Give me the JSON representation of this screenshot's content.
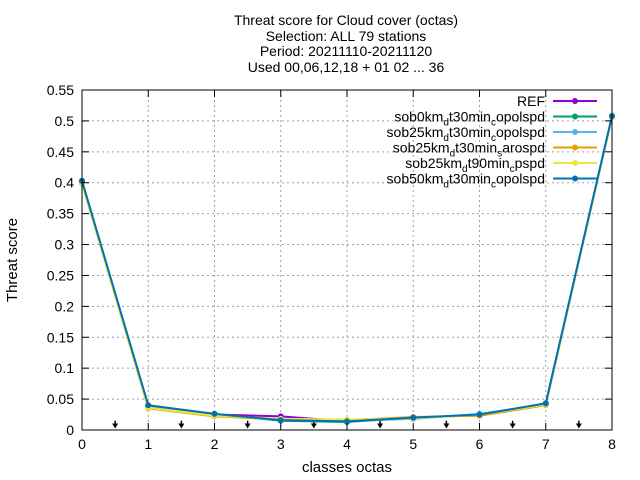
{
  "title_lines": [
    "Threat score  for Cloud cover (octas)",
    "Selection: ALL      79 stations",
    "Period: 20211110-20211120",
    "Used 00,06,12,18 + 01 02 ... 36"
  ],
  "chart_data": {
    "type": "line",
    "title": "Threat score  for Cloud cover (octas)",
    "xlabel": "classes octas",
    "ylabel": "Threat score",
    "xlim": [
      0,
      8
    ],
    "ylim": [
      0,
      0.55
    ],
    "x_ticks": [
      0,
      1,
      2,
      3,
      4,
      5,
      6,
      7,
      8
    ],
    "x_tick_labels": [
      "0",
      "1",
      "2",
      "3",
      "4",
      "5",
      "6",
      "7",
      "8"
    ],
    "y_ticks": [
      0,
      0.05,
      0.1,
      0.15,
      0.2,
      0.25,
      0.3,
      0.35,
      0.4,
      0.45,
      0.5,
      0.55
    ],
    "y_tick_labels": [
      "0",
      "0.05",
      "0.1",
      "0.15",
      "0.2",
      "0.25",
      "0.3",
      "0.35",
      "0.4",
      "0.45",
      "0.5",
      "0.55"
    ],
    "grid": true,
    "legend_position": "top-right",
    "x": [
      0,
      1,
      2,
      3,
      4,
      5,
      6,
      7,
      8
    ],
    "series": [
      {
        "name": "REF",
        "legend_parts": [
          [
            "REF",
            "n"
          ]
        ],
        "color": "#9400d3",
        "values": [
          0.403,
          0.037,
          0.025,
          0.022,
          0.014,
          0.019,
          0.025,
          0.041,
          0.507
        ]
      },
      {
        "name": "sob0km_dt30min_copolspd",
        "legend_parts": [
          [
            "sob0km",
            "n"
          ],
          [
            "d",
            "sub"
          ],
          [
            "t30min",
            "n"
          ],
          [
            "c",
            "sub"
          ],
          [
            "opolspd",
            "n"
          ]
        ],
        "color": "#009e73",
        "values": [
          0.401,
          0.039,
          0.026,
          0.015,
          0.013,
          0.02,
          0.024,
          0.043,
          0.508
        ]
      },
      {
        "name": "sob25km_dt30min_copolspd",
        "legend_parts": [
          [
            "sob25km",
            "n"
          ],
          [
            "d",
            "sub"
          ],
          [
            "t30min",
            "n"
          ],
          [
            "c",
            "sub"
          ],
          [
            "opolspd",
            "n"
          ]
        ],
        "color": "#56b4e9",
        "values": [
          0.402,
          0.038,
          0.024,
          0.016,
          0.015,
          0.018,
          0.026,
          0.042,
          0.506
        ]
      },
      {
        "name": "sob25km_dt30min_sarospd",
        "legend_parts": [
          [
            "sob25km",
            "n"
          ],
          [
            "d",
            "sub"
          ],
          [
            "t30min",
            "n"
          ],
          [
            "s",
            "sub"
          ],
          [
            "arospd",
            "n"
          ]
        ],
        "color": "#e69f00",
        "values": [
          0.399,
          0.035,
          0.022,
          0.017,
          0.016,
          0.021,
          0.023,
          0.04,
          0.507
        ]
      },
      {
        "name": "sob25km_dt90min_cpspd",
        "legend_parts": [
          [
            "sob25km",
            "n"
          ],
          [
            "d",
            "sub"
          ],
          [
            "t90min",
            "n"
          ],
          [
            "c",
            "sub"
          ],
          [
            "pspd",
            "n"
          ]
        ],
        "color": "#f0e442",
        "values": [
          0.398,
          0.036,
          0.023,
          0.018,
          0.017,
          0.019,
          0.025,
          0.041,
          0.506
        ]
      },
      {
        "name": "sob50km_dt30min_copolspd",
        "legend_parts": [
          [
            "sob50km",
            "n"
          ],
          [
            "d",
            "sub"
          ],
          [
            "t30min",
            "n"
          ],
          [
            "c",
            "sub"
          ],
          [
            "opolspd",
            "n"
          ]
        ],
        "color": "#0072b2",
        "values": [
          0.403,
          0.04,
          0.026,
          0.016,
          0.014,
          0.02,
          0.025,
          0.043,
          0.508
        ]
      }
    ],
    "arrow_markers": {
      "x": [
        0.5,
        1.5,
        2.5,
        3.5,
        4.5,
        5.5,
        6.5,
        7.5
      ],
      "from_y": 0.015,
      "to_y": 0.004
    }
  }
}
